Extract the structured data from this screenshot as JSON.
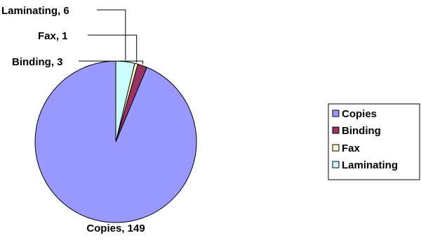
{
  "chart_data": {
    "type": "pie",
    "categories": [
      "Copies",
      "Binding",
      "Fax",
      "Laminating"
    ],
    "values": [
      149,
      3,
      1,
      6
    ],
    "colors": [
      "#9999ff",
      "#993366",
      "#ffffcc",
      "#ccffff"
    ],
    "data_labels": [
      "Copies, 149",
      "Binding, 3",
      "Fax, 1",
      "Laminating, 6"
    ],
    "legend": {
      "position": "right",
      "entries": [
        "Copies",
        "Binding",
        "Fax",
        "Laminating"
      ]
    },
    "start_angle": "12 o'clock",
    "direction": "counter-clockwise"
  }
}
